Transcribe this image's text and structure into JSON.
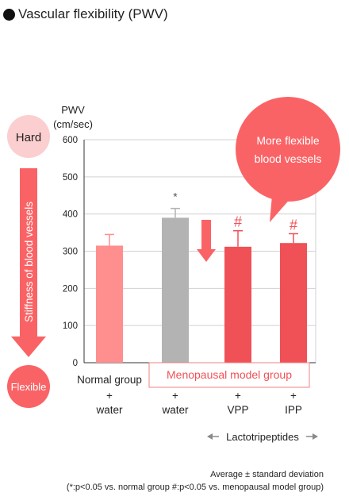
{
  "title": "Vascular flexibility (PWV)",
  "left_indicator": {
    "hard_label": "Hard",
    "flexible_label": "Flexible",
    "arrow_label": "Stiffness of blood vessels"
  },
  "callout": {
    "line1": "More flexible",
    "line2": "blood vessels"
  },
  "lactotripeptides_label": "Lactotripeptides",
  "footnote_line1": "Average ± standard deviation",
  "footnote_line2": "(*:p<0.05 vs. normal group #:p<0.05 vs. menopausal model group)",
  "colors": {
    "normal": "#ff8f8f",
    "menopausal_water": "#b3b3b3",
    "treatment": "#ef5156",
    "callout": "#fa6366",
    "hard_circle": "#fbcfcf",
    "flexible_circle": "#fa6366",
    "group_box_border": "#f08080",
    "group_box_text": "#ef5156"
  },
  "chart_data": {
    "type": "bar",
    "ylabel_line1": "PWV",
    "ylabel_line2": "(cm/sec)",
    "ylim": [
      0,
      600
    ],
    "yticks": [
      0,
      100,
      200,
      300,
      400,
      500,
      600
    ],
    "grid": true,
    "categories": [
      "Normal group + water",
      "+ water",
      "+ VPP",
      "+ IPP"
    ],
    "category_labels": [
      [
        "Normal group",
        "+",
        "water"
      ],
      [
        "",
        "+",
        "water"
      ],
      [
        "",
        "+",
        "VPP"
      ],
      [
        "",
        "+",
        "IPP"
      ]
    ],
    "values": [
      315,
      390,
      312,
      322
    ],
    "errors": [
      30,
      25,
      43,
      25
    ],
    "markers": [
      "",
      "*",
      "#",
      "#"
    ],
    "group_box_label": "Menopausal model group"
  }
}
